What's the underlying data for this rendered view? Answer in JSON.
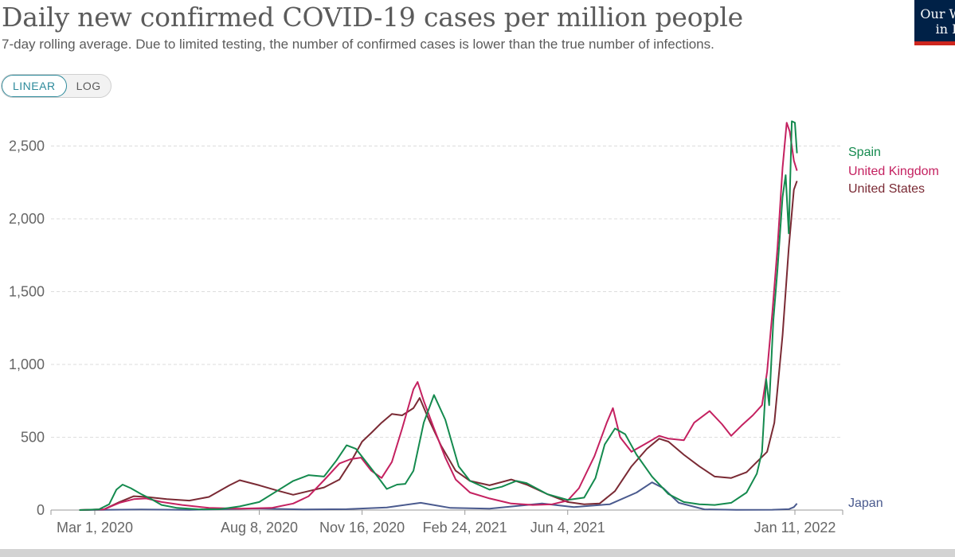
{
  "header": {
    "title": "Daily new confirmed COVID-19 cases per million people",
    "subtitle": "7-day rolling average. Due to limited testing, the number of confirmed cases is lower than the true number of infections."
  },
  "logo": {
    "text_line1": "Our W",
    "text_line2": "in D"
  },
  "controls": {
    "linear_label": "LINEAR",
    "log_label": "LOG",
    "selected": "LINEAR"
  },
  "chart_data": {
    "type": "line",
    "title": "Daily new confirmed COVID-19 cases per million people",
    "subtitle": "7-day rolling average. Due to limited testing, the number of confirmed cases is lower than the true number of infections.",
    "xlabel": "",
    "ylabel": "",
    "x_range": [
      "2020-02-01",
      "2022-01-21"
    ],
    "ylim": [
      0,
      2700
    ],
    "x_ticks": [
      {
        "date": "2020-03-01",
        "label": "Mar 1, 2020"
      },
      {
        "date": "2020-08-08",
        "label": "Aug 8, 2020"
      },
      {
        "date": "2020-11-16",
        "label": "Nov 16, 2020"
      },
      {
        "date": "2021-02-24",
        "label": "Feb 24, 2021"
      },
      {
        "date": "2021-06-04",
        "label": "Jun 4, 2021"
      },
      {
        "date": "2022-01-11",
        "label": "Jan 11, 2022"
      }
    ],
    "y_ticks": [
      {
        "value": 0,
        "label": "0"
      },
      {
        "value": 500,
        "label": "500"
      },
      {
        "value": 1000,
        "label": "1,000"
      },
      {
        "value": 1500,
        "label": "1,500"
      },
      {
        "value": 2000,
        "label": "2,000"
      },
      {
        "value": 2500,
        "label": "2,500"
      }
    ],
    "grid": "horizontal dashed",
    "legend": "end-of-line labels",
    "series": [
      {
        "name": "Spain",
        "color": "#148a4e",
        "points": [
          [
            "2020-02-15",
            0
          ],
          [
            "2020-03-05",
            5
          ],
          [
            "2020-03-15",
            40
          ],
          [
            "2020-03-22",
            140
          ],
          [
            "2020-03-28",
            175
          ],
          [
            "2020-04-05",
            150
          ],
          [
            "2020-04-15",
            110
          ],
          [
            "2020-04-25",
            75
          ],
          [
            "2020-05-05",
            35
          ],
          [
            "2020-05-20",
            15
          ],
          [
            "2020-06-10",
            5
          ],
          [
            "2020-07-01",
            6
          ],
          [
            "2020-07-20",
            25
          ],
          [
            "2020-08-08",
            55
          ],
          [
            "2020-08-25",
            130
          ],
          [
            "2020-09-10",
            200
          ],
          [
            "2020-09-25",
            240
          ],
          [
            "2020-10-10",
            230
          ],
          [
            "2020-10-22",
            340
          ],
          [
            "2020-11-01",
            445
          ],
          [
            "2020-11-10",
            420
          ],
          [
            "2020-11-20",
            330
          ],
          [
            "2020-12-01",
            230
          ],
          [
            "2020-12-10",
            145
          ],
          [
            "2020-12-20",
            175
          ],
          [
            "2020-12-28",
            180
          ],
          [
            "2021-01-05",
            270
          ],
          [
            "2021-01-15",
            600
          ],
          [
            "2021-01-25",
            790
          ],
          [
            "2021-02-05",
            620
          ],
          [
            "2021-02-18",
            300
          ],
          [
            "2021-03-01",
            200
          ],
          [
            "2021-03-20",
            140
          ],
          [
            "2021-04-01",
            160
          ],
          [
            "2021-04-15",
            200
          ],
          [
            "2021-04-25",
            185
          ],
          [
            "2021-05-15",
            110
          ],
          [
            "2021-06-04",
            70
          ],
          [
            "2021-06-20",
            85
          ],
          [
            "2021-07-01",
            220
          ],
          [
            "2021-07-10",
            450
          ],
          [
            "2021-07-20",
            560
          ],
          [
            "2021-07-30",
            520
          ],
          [
            "2021-08-10",
            380
          ],
          [
            "2021-08-25",
            230
          ],
          [
            "2021-09-10",
            110
          ],
          [
            "2021-09-25",
            55
          ],
          [
            "2021-10-10",
            40
          ],
          [
            "2021-10-25",
            35
          ],
          [
            "2021-11-10",
            50
          ],
          [
            "2021-11-25",
            120
          ],
          [
            "2021-12-05",
            250
          ],
          [
            "2021-12-10",
            400
          ],
          [
            "2021-12-14",
            900
          ],
          [
            "2021-12-17",
            720
          ],
          [
            "2021-12-21",
            1300
          ],
          [
            "2021-12-25",
            1650
          ],
          [
            "2021-12-30",
            2150
          ],
          [
            "2022-01-02",
            2300
          ],
          [
            "2022-01-05",
            1900
          ],
          [
            "2022-01-08",
            2670
          ],
          [
            "2022-01-11",
            2660
          ],
          [
            "2022-01-13",
            2450
          ]
        ]
      },
      {
        "name": "United Kingdom",
        "color": "#c42160",
        "points": [
          [
            "2020-02-15",
            0
          ],
          [
            "2020-03-10",
            5
          ],
          [
            "2020-03-25",
            50
          ],
          [
            "2020-04-08",
            75
          ],
          [
            "2020-04-20",
            80
          ],
          [
            "2020-05-05",
            55
          ],
          [
            "2020-05-25",
            35
          ],
          [
            "2020-06-20",
            15
          ],
          [
            "2020-07-20",
            10
          ],
          [
            "2020-08-20",
            15
          ],
          [
            "2020-09-10",
            45
          ],
          [
            "2020-09-25",
            95
          ],
          [
            "2020-10-10",
            205
          ],
          [
            "2020-10-25",
            320
          ],
          [
            "2020-11-05",
            350
          ],
          [
            "2020-11-15",
            360
          ],
          [
            "2020-11-25",
            270
          ],
          [
            "2020-12-05",
            220
          ],
          [
            "2020-12-15",
            330
          ],
          [
            "2020-12-25",
            560
          ],
          [
            "2021-01-05",
            830
          ],
          [
            "2021-01-09",
            880
          ],
          [
            "2021-01-15",
            750
          ],
          [
            "2021-01-25",
            560
          ],
          [
            "2021-02-05",
            360
          ],
          [
            "2021-02-15",
            210
          ],
          [
            "2021-03-01",
            120
          ],
          [
            "2021-03-20",
            80
          ],
          [
            "2021-04-10",
            45
          ],
          [
            "2021-05-01",
            35
          ],
          [
            "2021-05-20",
            40
          ],
          [
            "2021-06-04",
            65
          ],
          [
            "2021-06-15",
            150
          ],
          [
            "2021-06-30",
            370
          ],
          [
            "2021-07-12",
            600
          ],
          [
            "2021-07-18",
            700
          ],
          [
            "2021-07-25",
            500
          ],
          [
            "2021-08-05",
            400
          ],
          [
            "2021-08-20",
            460
          ],
          [
            "2021-09-01",
            510
          ],
          [
            "2021-09-10",
            490
          ],
          [
            "2021-09-25",
            480
          ],
          [
            "2021-10-05",
            600
          ],
          [
            "2021-10-20",
            680
          ],
          [
            "2021-11-01",
            590
          ],
          [
            "2021-11-10",
            510
          ],
          [
            "2021-11-20",
            580
          ],
          [
            "2021-12-01",
            650
          ],
          [
            "2021-12-10",
            720
          ],
          [
            "2021-12-15",
            950
          ],
          [
            "2021-12-20",
            1350
          ],
          [
            "2021-12-25",
            1800
          ],
          [
            "2021-12-30",
            2350
          ],
          [
            "2022-01-03",
            2660
          ],
          [
            "2022-01-06",
            2600
          ],
          [
            "2022-01-10",
            2400
          ],
          [
            "2022-01-13",
            2330
          ]
        ]
      },
      {
        "name": "United States",
        "color": "#7a2a34",
        "points": [
          [
            "2020-02-15",
            0
          ],
          [
            "2020-03-10",
            5
          ],
          [
            "2020-03-25",
            55
          ],
          [
            "2020-04-08",
            95
          ],
          [
            "2020-04-20",
            90
          ],
          [
            "2020-05-10",
            75
          ],
          [
            "2020-06-01",
            65
          ],
          [
            "2020-06-20",
            90
          ],
          [
            "2020-07-10",
            170
          ],
          [
            "2020-07-20",
            205
          ],
          [
            "2020-08-08",
            170
          ],
          [
            "2020-08-25",
            135
          ],
          [
            "2020-09-10",
            105
          ],
          [
            "2020-09-25",
            130
          ],
          [
            "2020-10-10",
            155
          ],
          [
            "2020-10-25",
            210
          ],
          [
            "2020-11-05",
            330
          ],
          [
            "2020-11-16",
            470
          ],
          [
            "2020-11-25",
            530
          ],
          [
            "2020-12-05",
            600
          ],
          [
            "2020-12-15",
            660
          ],
          [
            "2020-12-25",
            650
          ],
          [
            "2021-01-05",
            700
          ],
          [
            "2021-01-11",
            770
          ],
          [
            "2021-01-20",
            620
          ],
          [
            "2021-02-01",
            440
          ],
          [
            "2021-02-15",
            270
          ],
          [
            "2021-03-01",
            200
          ],
          [
            "2021-03-20",
            170
          ],
          [
            "2021-04-10",
            210
          ],
          [
            "2021-04-25",
            175
          ],
          [
            "2021-05-15",
            110
          ],
          [
            "2021-06-04",
            55
          ],
          [
            "2021-06-20",
            40
          ],
          [
            "2021-07-05",
            45
          ],
          [
            "2021-07-20",
            130
          ],
          [
            "2021-08-05",
            300
          ],
          [
            "2021-08-20",
            420
          ],
          [
            "2021-09-01",
            490
          ],
          [
            "2021-09-10",
            470
          ],
          [
            "2021-09-25",
            380
          ],
          [
            "2021-10-10",
            300
          ],
          [
            "2021-10-25",
            230
          ],
          [
            "2021-11-10",
            220
          ],
          [
            "2021-11-25",
            260
          ],
          [
            "2021-12-05",
            330
          ],
          [
            "2021-12-15",
            400
          ],
          [
            "2021-12-22",
            600
          ],
          [
            "2021-12-30",
            1200
          ],
          [
            "2022-01-05",
            1800
          ],
          [
            "2022-01-10",
            2200
          ],
          [
            "2022-01-13",
            2260
          ]
        ]
      },
      {
        "name": "Japan",
        "color": "#4a5a8e",
        "points": [
          [
            "2020-02-15",
            0
          ],
          [
            "2020-04-15",
            4
          ],
          [
            "2020-06-01",
            1
          ],
          [
            "2020-08-05",
            11
          ],
          [
            "2020-09-20",
            4
          ],
          [
            "2020-11-01",
            6
          ],
          [
            "2020-12-10",
            18
          ],
          [
            "2021-01-12",
            50
          ],
          [
            "2021-02-10",
            15
          ],
          [
            "2021-03-20",
            10
          ],
          [
            "2021-05-10",
            45
          ],
          [
            "2021-06-10",
            20
          ],
          [
            "2021-07-15",
            40
          ],
          [
            "2021-08-10",
            120
          ],
          [
            "2021-08-25",
            190
          ],
          [
            "2021-09-05",
            150
          ],
          [
            "2021-09-20",
            50
          ],
          [
            "2021-10-15",
            5
          ],
          [
            "2021-11-15",
            1
          ],
          [
            "2021-12-20",
            2
          ],
          [
            "2022-01-05",
            6
          ],
          [
            "2022-01-10",
            20
          ],
          [
            "2022-01-13",
            45
          ]
        ]
      }
    ]
  }
}
